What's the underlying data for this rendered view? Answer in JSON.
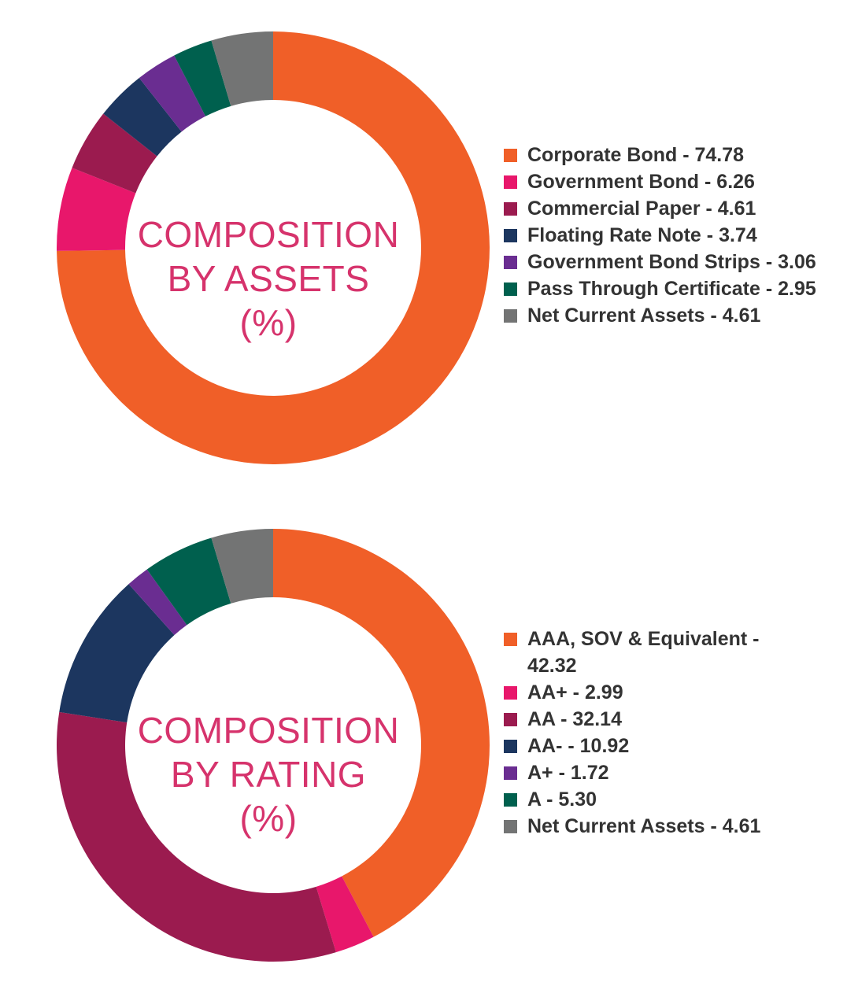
{
  "chart_data": [
    {
      "type": "pie",
      "variant": "donut",
      "title_lines": [
        "COMPOSITION",
        "BY ASSETS",
        "(%)"
      ],
      "unit": "%",
      "slices": [
        {
          "label": "Corporate Bond",
          "value": 74.78,
          "value_text": "74.78",
          "color": "#f05f28"
        },
        {
          "label": "Government Bond",
          "value": 6.26,
          "value_text": "6.26",
          "color": "#e8176b"
        },
        {
          "label": "Commercial Paper",
          "value": 4.61,
          "value_text": "4.61",
          "color": "#9b1b4f"
        },
        {
          "label": "Floating Rate Note",
          "value": 3.74,
          "value_text": "3.74",
          "color": "#1c365f"
        },
        {
          "label": "Government Bond Strips",
          "value": 3.06,
          "value_text": "3.06",
          "color": "#6a2d91"
        },
        {
          "label": "Pass Through Certificate",
          "value": 2.95,
          "value_text": "2.95",
          "color": "#00604e"
        },
        {
          "label": "Net Current Assets",
          "value": 4.61,
          "value_text": "4.61",
          "color": "#737474"
        }
      ]
    },
    {
      "type": "pie",
      "variant": "donut",
      "title_lines": [
        "COMPOSITION",
        "BY RATING",
        "(%)"
      ],
      "unit": "%",
      "slices": [
        {
          "label": "AAA, SOV & Equivalent",
          "value": 42.32,
          "value_text": "42.32",
          "color": "#f05f28"
        },
        {
          "label": "AA+",
          "value": 2.99,
          "value_text": "2.99",
          "color": "#e8176b"
        },
        {
          "label": "AA",
          "value": 32.14,
          "value_text": "32.14",
          "color": "#9b1b4f"
        },
        {
          "label": "AA-",
          "value": 10.92,
          "value_text": "10.92",
          "color": "#1c365f"
        },
        {
          "label": "A+",
          "value": 1.72,
          "value_text": "1.72",
          "color": "#6a2d91"
        },
        {
          "label": "A",
          "value": 5.3,
          "value_text": "5.30",
          "color": "#00604e"
        },
        {
          "label": "Net Current Assets",
          "value": 4.61,
          "value_text": "4.61",
          "color": "#737474"
        }
      ]
    }
  ]
}
